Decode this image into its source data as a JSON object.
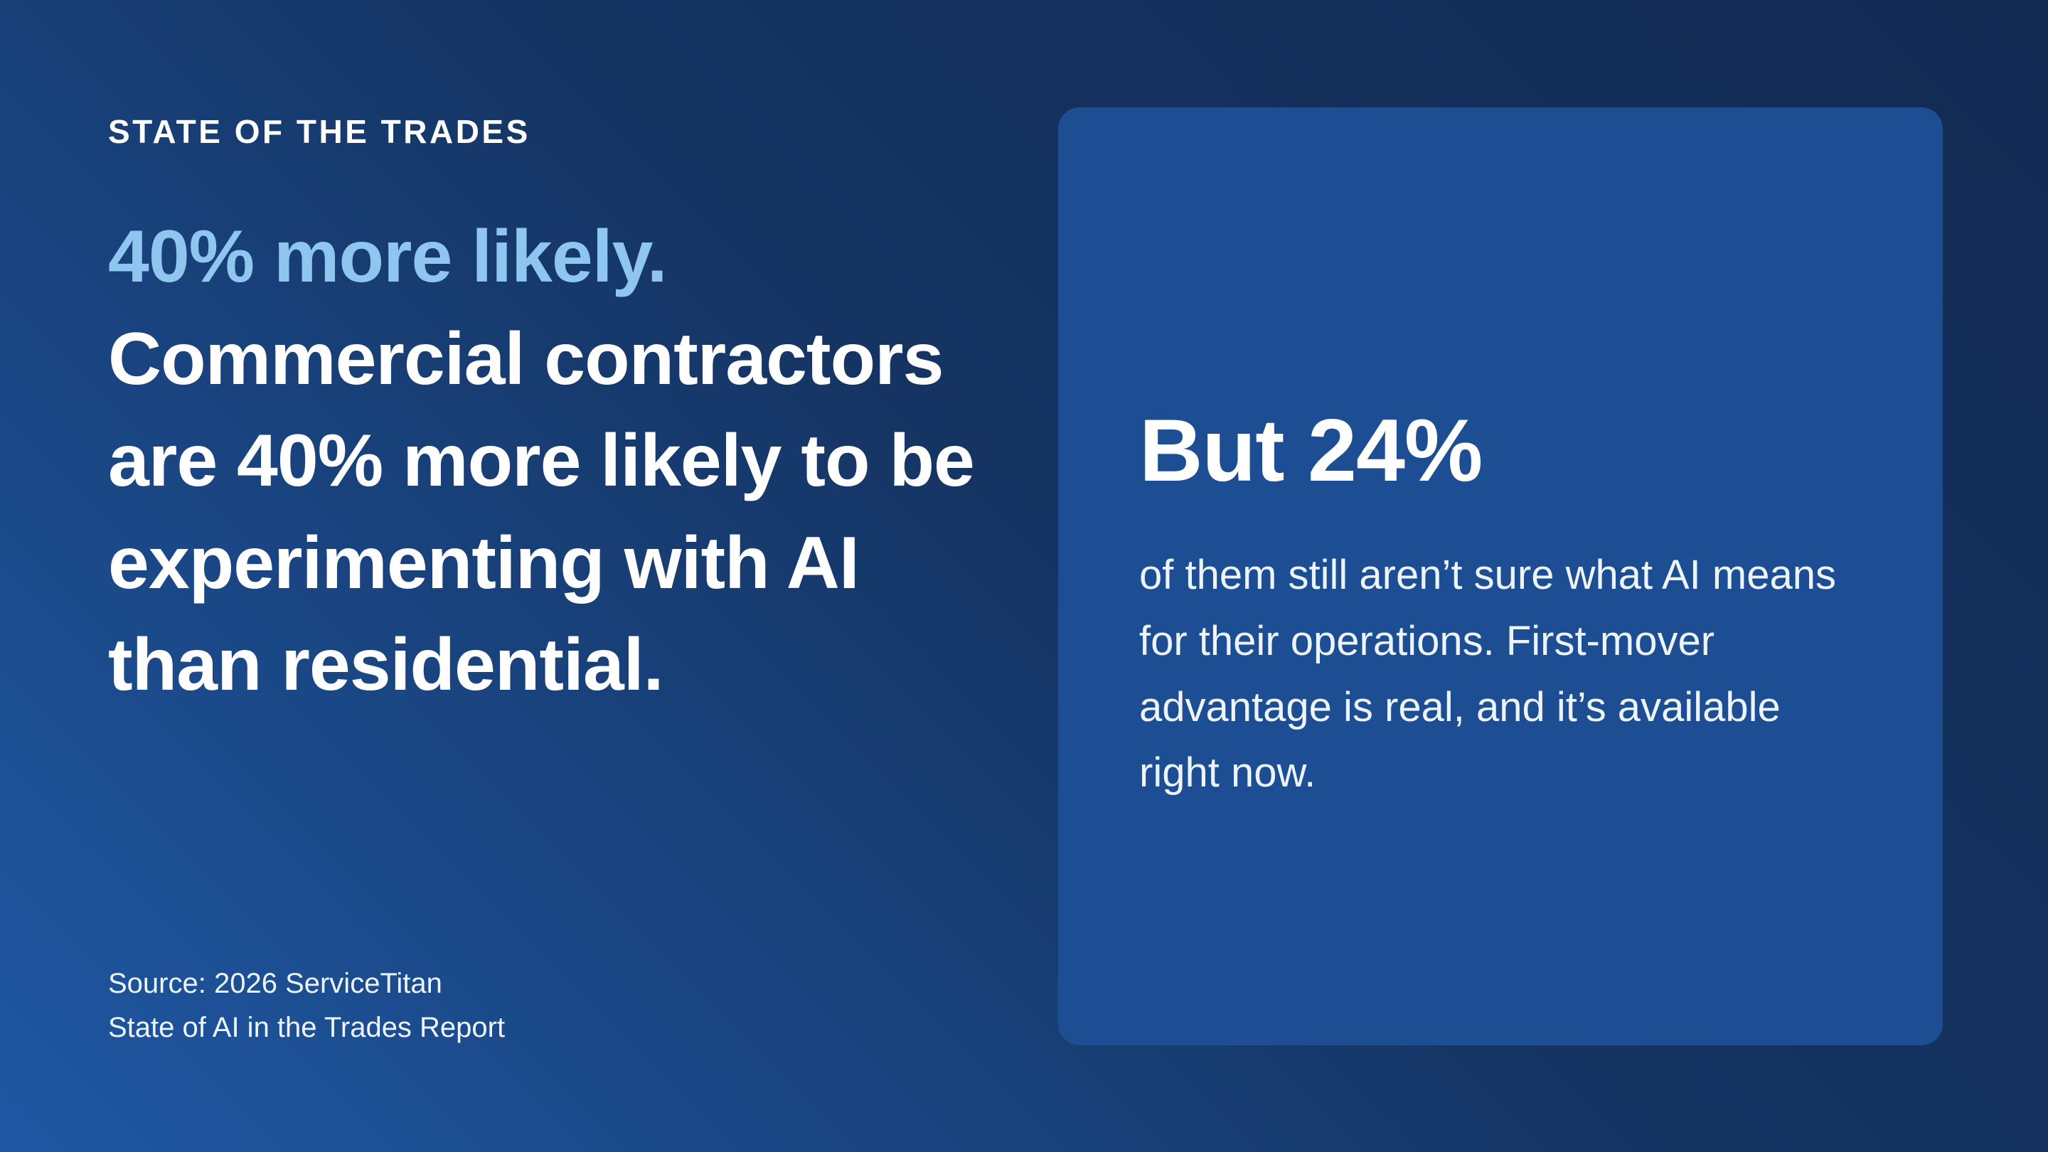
{
  "colors": {
    "bg_dark": "#112a52",
    "bg_light": "#1f58a4",
    "card_bg": "#1d4d92",
    "accent_blue": "#8fc6f0",
    "text_white": "#ffffff",
    "text_soft": "#eef4fb"
  },
  "eyebrow": "STATE OF THE TRADES",
  "headline": {
    "highlight": "40% more likely.",
    "rest": "Commercial contractors are 40% more likely to be experimenting with AI than residential."
  },
  "source": {
    "line1": "Source: 2026 ServiceTitan",
    "line2": "State of AI in the Trades Report"
  },
  "card": {
    "stat": "But 24%",
    "body": "of them still aren’t sure what AI means for their operations. First-mover advantage is real, and it’s available right now."
  }
}
